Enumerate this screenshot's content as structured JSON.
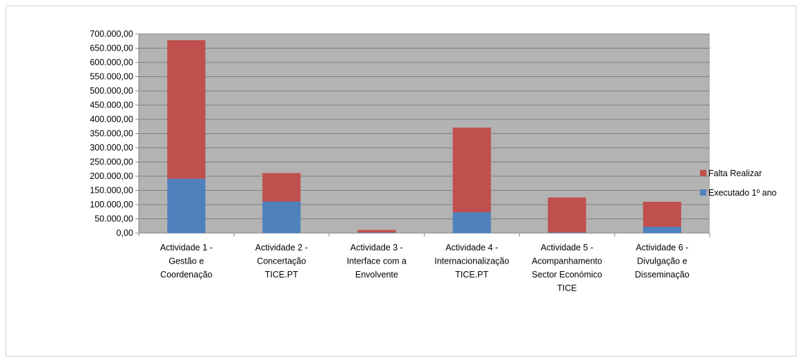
{
  "chart_data": {
    "type": "bar",
    "stacked": true,
    "categories": [
      [
        "Actividade 1 -",
        "Gestão e",
        "Coordenação"
      ],
      [
        "Actividade 2 -",
        "Concertação",
        "TICE.PT"
      ],
      [
        "Actividade 3 -",
        "Interface com a",
        "Envolvente"
      ],
      [
        "Actividade 4 -",
        "Internacionalização",
        "TICE.PT"
      ],
      [
        "Actividade 5 -",
        "Acompanhamento",
        "Sector Económico",
        "TICE"
      ],
      [
        "Actividade 6 -",
        "Divulgação e",
        "Disseminação"
      ]
    ],
    "series": [
      {
        "name": "Executado    1º ano",
        "color": "#4f81bd",
        "values": [
          191000,
          111000,
          2000,
          73000,
          2000,
          22000
        ]
      },
      {
        "name": "Falta Realizar",
        "color": "#c0504d",
        "values": [
          487000,
          100000,
          9000,
          298000,
          123000,
          88000
        ]
      }
    ],
    "ylim": [
      0,
      700000
    ],
    "ytick_step": 50000,
    "ytick_labels": [
      "0,00",
      "50.000,00",
      "100.000,00",
      "150.000,00",
      "200.000,00",
      "250.000,00",
      "300.000,00",
      "350.000,00",
      "400.000,00",
      "450.000,00",
      "500.000,00",
      "550.000,00",
      "600.000,00",
      "650.000,00",
      "700.000,00"
    ],
    "grid": true,
    "plot_background": "#b3b3b3",
    "legend_position": "right",
    "title": "",
    "xlabel": "",
    "ylabel": ""
  }
}
